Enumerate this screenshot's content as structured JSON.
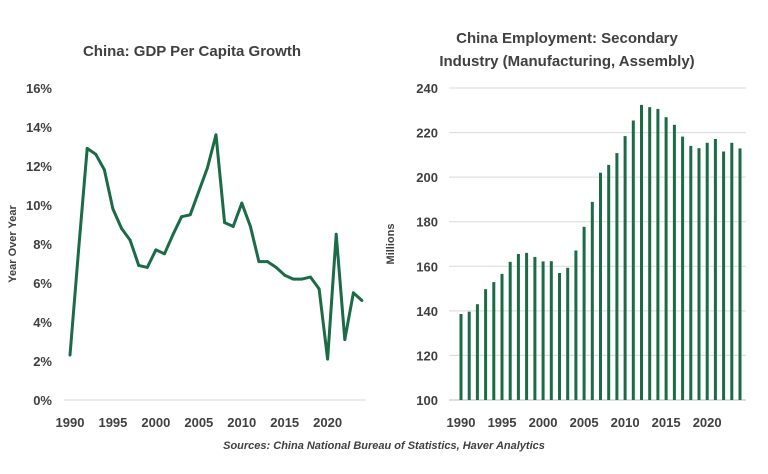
{
  "chart_data": [
    {
      "type": "line",
      "title": "China:  GDP Per Capita  Growth",
      "ylabel": "Year Over Year",
      "xlabel": "",
      "ylim": [
        0,
        16
      ],
      "xlim": [
        1989,
        2025
      ],
      "y_ticks": [
        "0%",
        "2%",
        "4%",
        "6%",
        "8%",
        "10%",
        "12%",
        "14%",
        "16%"
      ],
      "x_ticks": [
        "1990",
        "1995",
        "2000",
        "2005",
        "2010",
        "2015",
        "2020"
      ],
      "grid": false,
      "color": "#1a6b46",
      "series": [
        {
          "x": [
            1990,
            1991,
            1992,
            1993,
            1994,
            1995,
            1996,
            1997,
            1998,
            1999,
            2000,
            2001,
            2002,
            2003,
            2004,
            2005,
            2006,
            2007,
            2008,
            2009,
            2010,
            2011,
            2012,
            2013,
            2014,
            2015,
            2016,
            2017,
            2018,
            2019,
            2020,
            2021,
            2022,
            2023,
            2024
          ],
          "y": [
            2.3,
            7.7,
            12.9,
            12.6,
            11.8,
            9.8,
            8.8,
            8.2,
            6.9,
            6.8,
            7.7,
            7.5,
            8.5,
            9.4,
            9.5,
            10.7,
            11.9,
            13.6,
            9.1,
            8.9,
            10.1,
            8.9,
            7.1,
            7.1,
            6.8,
            6.4,
            6.2,
            6.2,
            6.3,
            5.7,
            2.1,
            8.5,
            3.1,
            5.5,
            5.1
          ]
        }
      ]
    },
    {
      "type": "bar",
      "title": "China  Employment:  Secondary  Industry  (Manufacturing,  Assembly)",
      "title_lines": [
        "China  Employment:  Secondary",
        "Industry  (Manufacturing,  Assembly)"
      ],
      "ylabel": "Millions",
      "xlabel": "",
      "ylim": [
        100,
        240
      ],
      "xlim": [
        1989,
        2025
      ],
      "y_ticks": [
        "100",
        "120",
        "140",
        "160",
        "180",
        "200",
        "220",
        "240"
      ],
      "x_ticks": [
        "1990",
        "1995",
        "2000",
        "2005",
        "2010",
        "2015",
        "2020"
      ],
      "grid": true,
      "color": "#1a6b46",
      "categories": [
        1990,
        1991,
        1992,
        1993,
        1994,
        1995,
        1996,
        1997,
        1998,
        1999,
        2000,
        2001,
        2002,
        2003,
        2004,
        2005,
        2006,
        2007,
        2008,
        2009,
        2010,
        2011,
        2012,
        2013,
        2014,
        2015,
        2016,
        2017,
        2018,
        2019,
        2020,
        2021,
        2022,
        2023,
        2024
      ],
      "values": [
        138.6,
        139.6,
        143.0,
        149.7,
        152.9,
        156.6,
        162.0,
        165.5,
        166.0,
        164.2,
        162.2,
        162.3,
        157.0,
        159.3,
        167.1,
        177.7,
        188.9,
        202.0,
        205.5,
        210.8,
        218.4,
        225.4,
        232.4,
        231.4,
        230.6,
        226.9,
        223.5,
        218.2,
        214.0,
        213.0,
        215.4,
        217.1,
        211.5,
        215.4,
        212.9
      ]
    }
  ],
  "footer": {
    "source": "Sources: China National Bureau of Statistics, Haver Analytics"
  }
}
